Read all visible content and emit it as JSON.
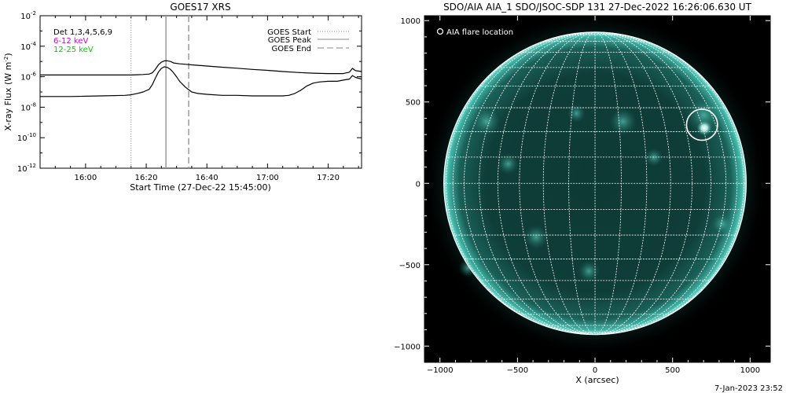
{
  "chart_data": [
    {
      "type": "line",
      "title": "GOES17 XRS",
      "xlabel": "Start Time (27-Dec-22 15:45:00)",
      "ylabel": "X-ray Flux (W m",
      "ylabel_sup": "-2",
      "ylabel_close": ")",
      "log_y": true,
      "ylim": [
        1e-12,
        0.01
      ],
      "x_ticks": [
        "16:00",
        "16:20",
        "16:40",
        "17:00",
        "17:20"
      ],
      "x_ticks_min": [
        15,
        35,
        55,
        75,
        95
      ],
      "xlim_min": [
        0,
        106
      ],
      "y_ticks": [
        {
          "base": "10",
          "exp": "-2",
          "value": 0.01
        },
        {
          "base": "10",
          "exp": "-4",
          "value": 0.0001
        },
        {
          "base": "10",
          "exp": "-6",
          "value": 1e-06
        },
        {
          "base": "10",
          "exp": "-8",
          "value": 1e-08
        },
        {
          "base": "10",
          "exp": "-10",
          "value": 1e-10
        },
        {
          "base": "10",
          "exp": "-12",
          "value": 1e-12
        }
      ],
      "legend_text": {
        "detectors": "Det 1,3,4,5,6,9",
        "band_low": "6-12 keV",
        "band_high": "12-25 keV",
        "start": "GOES Start",
        "peak": "GOES Peak",
        "end": "GOES End"
      },
      "vlines_min": {
        "start": 30,
        "peak": 41.5,
        "end": 49
      },
      "series": [
        {
          "name": "Det 1,3,4,5,6,9",
          "color": "#000000",
          "x_min": [
            0,
            10,
            20,
            28,
            30,
            32,
            34,
            36,
            37,
            38,
            39,
            40,
            41,
            42,
            43,
            44,
            46,
            48,
            50,
            55,
            60,
            65,
            70,
            75,
            80,
            85,
            90,
            95,
            100,
            102,
            103,
            104,
            106
          ],
          "y": [
            1.3e-06,
            1.3e-06,
            1.3e-06,
            1.3e-06,
            1.3e-06,
            1.35e-06,
            1.4e-06,
            1.5e-06,
            1.8e-06,
            3e-06,
            6e-06,
            9e-06,
            1.1e-05,
            1.1e-05,
            1e-05,
            8e-06,
            7e-06,
            6.5e-06,
            6e-06,
            5e-06,
            4.2e-06,
            3.6e-06,
            3e-06,
            2.6e-06,
            2.2e-06,
            1.9e-06,
            1.7e-06,
            1.6e-06,
            1.6e-06,
            2e-06,
            3.5e-06,
            2.5e-06,
            2.2e-06
          ]
        },
        {
          "name": "12-25 keV",
          "color": "#000000",
          "x_min": [
            0,
            10,
            20,
            28,
            30,
            32,
            34,
            36,
            37,
            38,
            39,
            40,
            41,
            42,
            43,
            44,
            45,
            46,
            48,
            50,
            52,
            55,
            60,
            65,
            70,
            75,
            80,
            82,
            84,
            86,
            88,
            90,
            92,
            95,
            98,
            100,
            102,
            103,
            104,
            106
          ],
          "y": [
            5e-08,
            5e-08,
            5.5e-08,
            6e-08,
            6.5e-08,
            8e-08,
            1e-07,
            1.5e-07,
            3e-07,
            8e-07,
            2e-06,
            3.5e-06,
            4.5e-06,
            4e-06,
            3e-06,
            1.8e-06,
            1e-06,
            5e-07,
            2e-07,
            1e-07,
            8e-08,
            7e-08,
            6e-08,
            6e-08,
            5.5e-08,
            5.5e-08,
            5.5e-08,
            6e-08,
            8e-08,
            1.3e-07,
            2.5e-07,
            3.8e-07,
            4.5e-07,
            5e-07,
            5e-07,
            6e-07,
            7e-07,
            1.2e-06,
            9e-07,
            7e-07
          ]
        }
      ]
    },
    {
      "type": "scatter",
      "title": "SDO/AIA AIA_1 SDO/JSOC-SDP 131 27-Dec-2022 16:26:06.630 UT",
      "xlabel": "X (arcsec)",
      "ylabel": "",
      "xlim": [
        -1100,
        1130
      ],
      "ylim": [
        -1100,
        1030
      ],
      "x_ticks": [
        "−1000",
        "−500",
        "0",
        "500",
        "1000"
      ],
      "x_tick_values": [
        -1000,
        -500,
        0,
        500,
        1000
      ],
      "y_ticks": [
        "1000",
        "500",
        "0",
        "−500",
        "−1000"
      ],
      "y_tick_values": [
        1000,
        500,
        0,
        -500,
        -1000
      ],
      "solar_radius_arcsec": 975,
      "grid_spacing_deg": 10,
      "legend": "AIA flare location",
      "flare_location": {
        "x": 690,
        "y": 360,
        "radius": 100
      },
      "disk_color": "#0d2e2a",
      "accent_color": "#3fc4b4",
      "footer": "7-Jan-2023 23:52"
    }
  ]
}
